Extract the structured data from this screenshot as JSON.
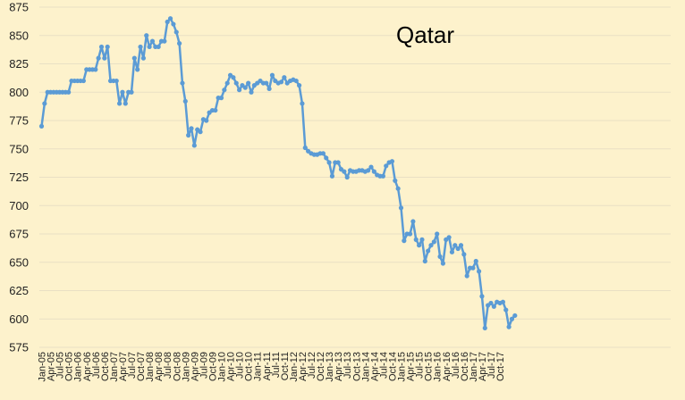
{
  "chart_data": {
    "type": "line",
    "title": "Qatar",
    "xlabel": "",
    "ylabel": "",
    "ylim": [
      575,
      875
    ],
    "y_ticks": [
      575,
      600,
      625,
      650,
      675,
      700,
      725,
      750,
      775,
      800,
      825,
      850,
      875
    ],
    "grid": true,
    "legend": "none",
    "x_start": "Jan-05",
    "x_tick_labels": [
      "Jan-05",
      "Apr-05",
      "Jul-05",
      "Oct-05",
      "Jan-06",
      "Apr-06",
      "Jul-06",
      "Oct-06",
      "Jan-07",
      "Apr-07",
      "Jul-07",
      "Oct-07",
      "Jan-08",
      "Apr-08",
      "Jul-08",
      "Oct-08",
      "Jan-09",
      "Apr-09",
      "Jul-09",
      "Oct-09",
      "Jan-10",
      "Apr-10",
      "Jul-10",
      "Oct-10",
      "Jan-11",
      "Apr-11",
      "Jul-11",
      "Oct-11",
      "Jan-12",
      "Apr-12",
      "Jul-12",
      "Oct-12",
      "Jan-13",
      "Apr-13",
      "Jul-13",
      "Oct-13",
      "Jan-14",
      "Apr-14",
      "Jul-14",
      "Oct-14",
      "Jan-15",
      "Apr-15",
      "Jul-15",
      "Oct-15",
      "Jan-16",
      "Apr-16",
      "Jul-16",
      "Oct-16",
      "Jan-17",
      "Apr-17",
      "Jul-17",
      "Oct-17"
    ],
    "colors": {
      "line": "#5b9bd5",
      "background": "#fdf2cc",
      "grid": "#e9e0c4"
    },
    "series": [
      {
        "values": [
          770,
          790,
          800,
          800,
          800,
          800,
          800,
          800,
          800,
          800,
          810,
          810,
          810,
          810,
          810,
          820,
          820,
          820,
          820,
          830,
          840,
          830,
          840,
          810,
          810,
          810,
          790,
          800,
          790,
          800,
          800,
          830,
          820,
          840,
          830,
          850,
          840,
          845,
          840,
          840,
          845,
          845,
          862,
          865,
          860,
          853,
          843,
          808,
          792,
          762,
          768,
          753,
          767,
          765,
          776,
          775,
          782,
          784,
          784,
          795,
          795,
          802,
          808,
          815,
          813,
          808,
          802,
          806,
          804,
          808,
          800,
          806,
          808,
          810,
          808,
          808,
          803,
          815,
          810,
          808,
          809,
          813,
          808,
          810,
          811,
          810,
          806,
          790,
          751,
          748,
          746,
          745,
          745,
          746,
          746,
          742,
          738,
          726,
          738,
          738,
          732,
          730,
          725,
          731,
          730,
          730,
          731,
          731,
          730,
          731,
          734,
          730,
          727,
          726,
          726,
          735,
          738,
          739,
          722,
          715,
          698,
          669,
          675,
          675,
          686,
          670,
          665,
          670,
          651,
          660,
          665,
          668,
          675,
          655,
          649,
          670,
          672,
          659,
          665,
          662,
          665,
          657,
          638,
          645,
          645,
          651,
          642,
          620,
          592,
          612,
          614,
          611,
          615,
          614,
          615,
          608,
          593,
          600,
          603
        ]
      }
    ]
  }
}
